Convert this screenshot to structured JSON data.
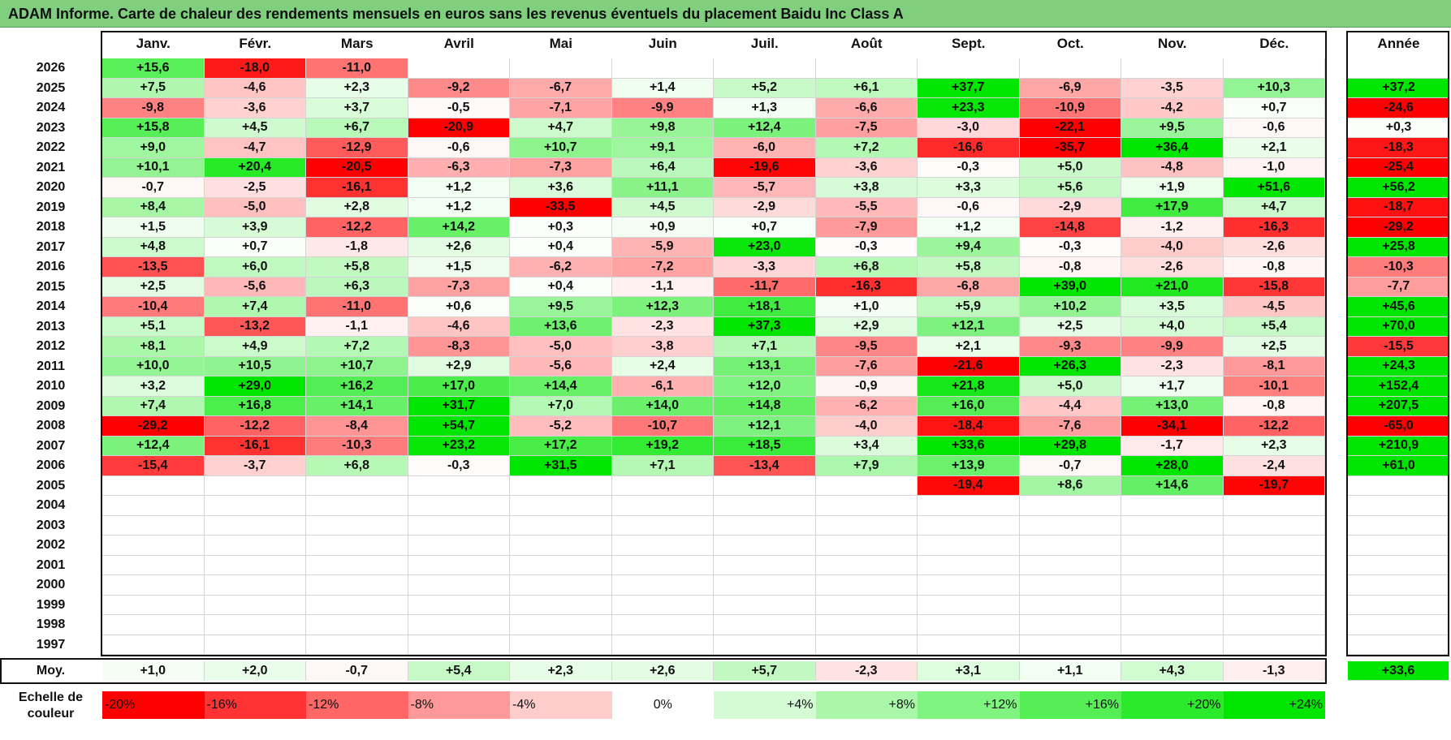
{
  "title": "ADAM Informe. Carte de chaleur des rendements mensuels en euros sans les revenus éventuels du placement Baidu Inc Class A",
  "chart_data": {
    "type": "heatmap",
    "months": [
      "Janv.",
      "Févr.",
      "Mars",
      "Avril",
      "Mai",
      "Juin",
      "Juil.",
      "Août",
      "Sept.",
      "Oct.",
      "Nov.",
      "Déc."
    ],
    "year_header": "Année",
    "rows": [
      {
        "year": "2026",
        "values": [
          "+15,6",
          "-18,0",
          "-11,0",
          null,
          null,
          null,
          null,
          null,
          null,
          null,
          null,
          null
        ],
        "annual": null
      },
      {
        "year": "2025",
        "values": [
          "+7,5",
          "-4,6",
          "+2,3",
          "-9,2",
          "-6,7",
          "+1,4",
          "+5,2",
          "+6,1",
          "+37,7",
          "-6,9",
          "-3,5",
          "+10,3"
        ],
        "annual": "+37,2"
      },
      {
        "year": "2024",
        "values": [
          "-9,8",
          "-3,6",
          "+3,7",
          "-0,5",
          "-7,1",
          "-9,9",
          "+1,3",
          "-6,6",
          "+23,3",
          "-10,9",
          "-4,2",
          "+0,7"
        ],
        "annual": "-24,6"
      },
      {
        "year": "2023",
        "values": [
          "+15,8",
          "+4,5",
          "+6,7",
          "-20,9",
          "+4,7",
          "+9,8",
          "+12,4",
          "-7,5",
          "-3,0",
          "-22,1",
          "+9,5",
          "-0,6"
        ],
        "annual": "+0,3"
      },
      {
        "year": "2022",
        "values": [
          "+9,0",
          "-4,7",
          "-12,9",
          "-0,6",
          "+10,7",
          "+9,1",
          "-6,0",
          "+7,2",
          "-16,6",
          "-35,7",
          "+36,4",
          "+2,1"
        ],
        "annual": "-18,3"
      },
      {
        "year": "2021",
        "values": [
          "+10,1",
          "+20,4",
          "-20,5",
          "-6,3",
          "-7,3",
          "+6,4",
          "-19,6",
          "-3,6",
          "-0,3",
          "+5,0",
          "-4,8",
          "-1,0"
        ],
        "annual": "-25,4"
      },
      {
        "year": "2020",
        "values": [
          "-0,7",
          "-2,5",
          "-16,1",
          "+1,2",
          "+3,6",
          "+11,1",
          "-5,7",
          "+3,8",
          "+3,3",
          "+5,6",
          "+1,9",
          "+51,6"
        ],
        "annual": "+56,2"
      },
      {
        "year": "2019",
        "values": [
          "+8,4",
          "-5,0",
          "+2,8",
          "+1,2",
          "-33,5",
          "+4,5",
          "-2,9",
          "-5,5",
          "-0,6",
          "-2,9",
          "+17,9",
          "+4,7"
        ],
        "annual": "-18,7"
      },
      {
        "year": "2018",
        "values": [
          "+1,5",
          "+3,9",
          "-12,2",
          "+14,2",
          "+0,3",
          "+0,9",
          "+0,7",
          "-7,9",
          "+1,2",
          "-14,8",
          "-1,2",
          "-16,3"
        ],
        "annual": "-29,2"
      },
      {
        "year": "2017",
        "values": [
          "+4,8",
          "+0,7",
          "-1,8",
          "+2,6",
          "+0,4",
          "-5,9",
          "+23,0",
          "-0,3",
          "+9,4",
          "-0,3",
          "-4,0",
          "-2,6"
        ],
        "annual": "+25,8"
      },
      {
        "year": "2016",
        "values": [
          "-13,5",
          "+6,0",
          "+5,8",
          "+1,5",
          "-6,2",
          "-7,2",
          "-3,3",
          "+6,8",
          "+5,8",
          "-0,8",
          "-2,6",
          "-0,8"
        ],
        "annual": "-10,3"
      },
      {
        "year": "2015",
        "values": [
          "+2,5",
          "-5,6",
          "+6,3",
          "-7,3",
          "+0,4",
          "-1,1",
          "-11,7",
          "-16,3",
          "-6,8",
          "+39,0",
          "+21,0",
          "-15,8"
        ],
        "annual": "-7,7"
      },
      {
        "year": "2014",
        "values": [
          "-10,4",
          "+7,4",
          "-11,0",
          "+0,6",
          "+9,5",
          "+12,3",
          "+18,1",
          "+1,0",
          "+5,9",
          "+10,2",
          "+3,5",
          "-4,5"
        ],
        "annual": "+45,6"
      },
      {
        "year": "2013",
        "values": [
          "+5,1",
          "-13,2",
          "-1,1",
          "-4,6",
          "+13,6",
          "-2,3",
          "+37,3",
          "+2,9",
          "+12,1",
          "+2,5",
          "+4,0",
          "+5,4"
        ],
        "annual": "+70,0"
      },
      {
        "year": "2012",
        "values": [
          "+8,1",
          "+4,9",
          "+7,2",
          "-8,3",
          "-5,0",
          "-3,8",
          "+7,1",
          "-9,5",
          "+2,1",
          "-9,3",
          "-9,9",
          "+2,5"
        ],
        "annual": "-15,5"
      },
      {
        "year": "2011",
        "values": [
          "+10,0",
          "+10,5",
          "+10,7",
          "+2,9",
          "-5,6",
          "+2,4",
          "+13,1",
          "-7,6",
          "-21,6",
          "+26,3",
          "-2,3",
          "-8,1"
        ],
        "annual": "+24,3"
      },
      {
        "year": "2010",
        "values": [
          "+3,2",
          "+29,0",
          "+16,2",
          "+17,0",
          "+14,4",
          "-6,1",
          "+12,0",
          "-0,9",
          "+21,8",
          "+5,0",
          "+1,7",
          "-10,1"
        ],
        "annual": "+152,4"
      },
      {
        "year": "2009",
        "values": [
          "+7,4",
          "+16,8",
          "+14,1",
          "+31,7",
          "+7,0",
          "+14,0",
          "+14,8",
          "-6,2",
          "+16,0",
          "-4,4",
          "+13,0",
          "-0,8"
        ],
        "annual": "+207,5"
      },
      {
        "year": "2008",
        "values": [
          "-29,2",
          "-12,2",
          "-8,4",
          "+54,7",
          "-5,2",
          "-10,7",
          "+12,1",
          "-4,0",
          "-18,4",
          "-7,6",
          "-34,1",
          "-12,2"
        ],
        "annual": "-65,0"
      },
      {
        "year": "2007",
        "values": [
          "+12,4",
          "-16,1",
          "-10,3",
          "+23,2",
          "+17,2",
          "+19,2",
          "+18,5",
          "+3,4",
          "+33,6",
          "+29,8",
          "-1,7",
          "+2,3"
        ],
        "annual": "+210,9"
      },
      {
        "year": "2006",
        "values": [
          "-15,4",
          "-3,7",
          "+6,8",
          "-0,3",
          "+31,5",
          "+7,1",
          "-13,4",
          "+7,9",
          "+13,9",
          "-0,7",
          "+28,0",
          "-2,4"
        ],
        "annual": "+61,0"
      },
      {
        "year": "2005",
        "values": [
          null,
          null,
          null,
          null,
          null,
          null,
          null,
          null,
          "-19,4",
          "+8,6",
          "+14,6",
          "-19,7"
        ],
        "annual": null
      },
      {
        "year": "2004",
        "values": [
          null,
          null,
          null,
          null,
          null,
          null,
          null,
          null,
          null,
          null,
          null,
          null
        ],
        "annual": null
      },
      {
        "year": "2003",
        "values": [
          null,
          null,
          null,
          null,
          null,
          null,
          null,
          null,
          null,
          null,
          null,
          null
        ],
        "annual": null
      },
      {
        "year": "2002",
        "values": [
          null,
          null,
          null,
          null,
          null,
          null,
          null,
          null,
          null,
          null,
          null,
          null
        ],
        "annual": null
      },
      {
        "year": "2001",
        "values": [
          null,
          null,
          null,
          null,
          null,
          null,
          null,
          null,
          null,
          null,
          null,
          null
        ],
        "annual": null
      },
      {
        "year": "2000",
        "values": [
          null,
          null,
          null,
          null,
          null,
          null,
          null,
          null,
          null,
          null,
          null,
          null
        ],
        "annual": null
      },
      {
        "year": "1999",
        "values": [
          null,
          null,
          null,
          null,
          null,
          null,
          null,
          null,
          null,
          null,
          null,
          null
        ],
        "annual": null
      },
      {
        "year": "1998",
        "values": [
          null,
          null,
          null,
          null,
          null,
          null,
          null,
          null,
          null,
          null,
          null,
          null
        ],
        "annual": null
      },
      {
        "year": "1997",
        "values": [
          null,
          null,
          null,
          null,
          null,
          null,
          null,
          null,
          null,
          null,
          null,
          null
        ],
        "annual": null
      }
    ],
    "average": {
      "label": "Moy.",
      "values": [
        "+1,0",
        "+2,0",
        "-0,7",
        "+5,4",
        "+2,3",
        "+2,6",
        "+5,7",
        "-2,3",
        "+3,1",
        "+1,1",
        "+4,3",
        "-1,3"
      ],
      "annual": "+33,6"
    },
    "legend": {
      "label": "Echelle de couleur",
      "steps": [
        "-20%",
        "-16%",
        "-12%",
        "-8%",
        "-4%",
        "0%",
        "+4%",
        "+8%",
        "+12%",
        "+16%",
        "+20%",
        "+24%"
      ],
      "step_values": [
        -20,
        -16,
        -12,
        -8,
        -4,
        0,
        4,
        8,
        12,
        16,
        20,
        24
      ]
    },
    "colors": {
      "neg_max": "#ff0000",
      "pos_max": "#00e600",
      "neutral": "#ffffff"
    }
  }
}
